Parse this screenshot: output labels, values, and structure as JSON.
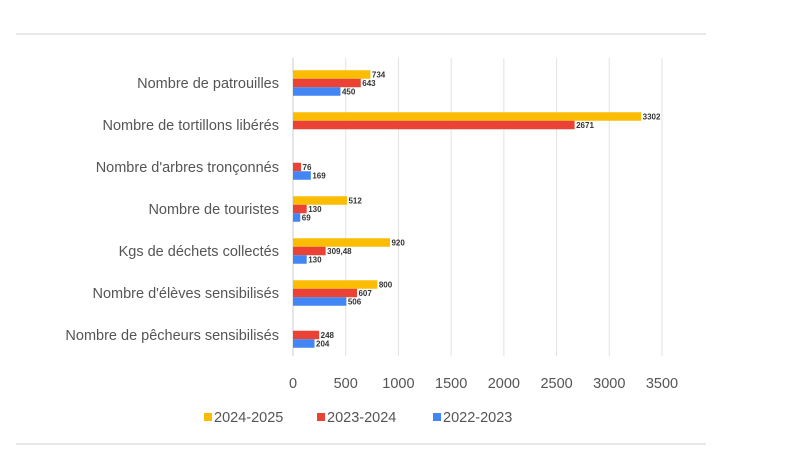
{
  "chart_data": {
    "type": "bar",
    "orientation": "horizontal",
    "title": "",
    "xlabel": "",
    "ylabel": "",
    "xlim": [
      0,
      3500
    ],
    "grid": true,
    "legend_position": "bottom",
    "categories": [
      "Nombre de patrouilles",
      "Nombre de tortillons libérés",
      "Nombre d'arbres tronçonnés",
      "Nombre de touristes",
      "Kgs de déchets collectés",
      "Nombre d'élèves sensibilisés",
      "Nombre de pêcheurs sensibilisés"
    ],
    "x_ticks": [
      "0",
      "500",
      "1000",
      "1500",
      "2000",
      "2500",
      "3000",
      "3500"
    ],
    "x_tick_values": [
      0,
      500,
      1000,
      1500,
      2000,
      2500,
      3000,
      3500
    ],
    "series": [
      {
        "name": "2024-2025",
        "color": "#fbbc04",
        "values": [
          734,
          3302,
          null,
          512,
          920,
          800,
          null
        ],
        "labels": [
          "734",
          "3302",
          "",
          "512",
          "920",
          "800",
          ""
        ]
      },
      {
        "name": "2023-2024",
        "color": "#ea4335",
        "values": [
          643,
          2671,
          76,
          130,
          309.48,
          607,
          248
        ],
        "labels": [
          "643",
          "2671",
          "76",
          "130",
          "309,48",
          "607",
          "248"
        ]
      },
      {
        "name": "2022-2023",
        "color": "#4285f4",
        "values": [
          450,
          null,
          169,
          69,
          130,
          506,
          204
        ],
        "labels": [
          "450",
          "",
          "169",
          "69",
          "130",
          "506",
          "204"
        ]
      }
    ]
  }
}
